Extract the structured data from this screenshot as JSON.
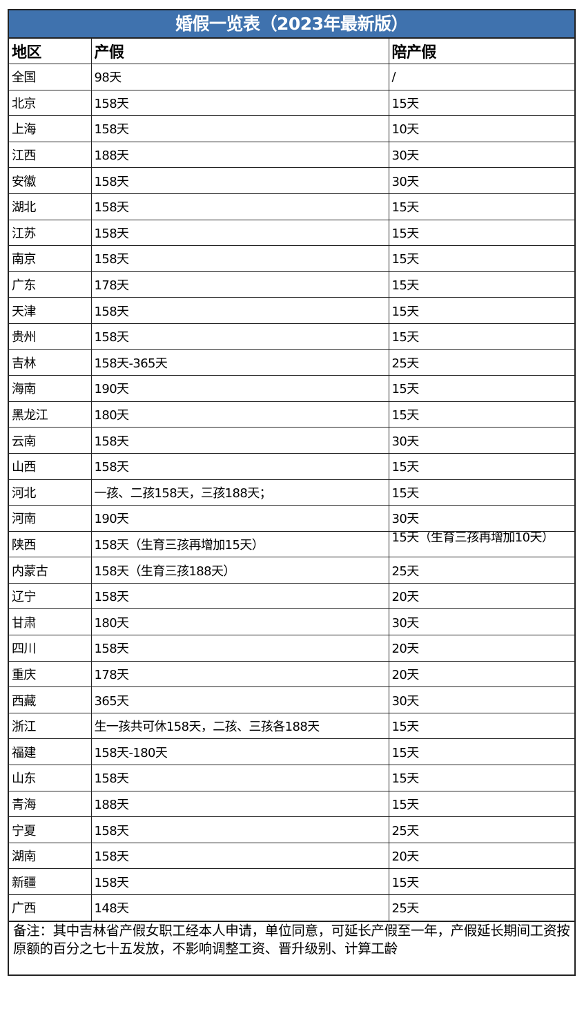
{
  "title": "婚假一览表（2023年最新版）",
  "headers": [
    "地区",
    "产假",
    "陪产假"
  ],
  "rows": [
    [
      "全国",
      "98天",
      "/"
    ],
    [
      "北京",
      "158天",
      "15天"
    ],
    [
      "上海",
      "158天",
      "10天"
    ],
    [
      "江西",
      "188天",
      "30天"
    ],
    [
      "安徽",
      "158天",
      "30天"
    ],
    [
      "湖北",
      "158天",
      "15天"
    ],
    [
      "江苏",
      "158天",
      "15天"
    ],
    [
      "南京",
      "158天",
      "15天"
    ],
    [
      "广东",
      "178天",
      "15天"
    ],
    [
      "天津",
      "158天",
      "15天"
    ],
    [
      "贵州",
      "158天",
      "15天"
    ],
    [
      "吉林",
      "158天-365天",
      "25天"
    ],
    [
      "海南",
      "190天",
      "15天"
    ],
    [
      "黑龙江",
      "180天",
      "15天"
    ],
    [
      "云南",
      "158天",
      "30天"
    ],
    [
      "山西",
      "158天",
      "15天"
    ],
    [
      "河北",
      "一孩、二孩158天，三孩188天；",
      "15天"
    ],
    [
      "河南",
      "190天",
      "30天"
    ],
    [
      "陕西",
      "158天（生育三孩再增加15天）",
      "15天（生育三孩再增加10天）"
    ],
    [
      "内蒙古",
      "158天（生育三孩188天）",
      "25天"
    ],
    [
      "辽宁",
      "158天",
      "20天"
    ],
    [
      "甘肃",
      "180天",
      "30天"
    ],
    [
      "四川",
      "158天",
      "20天"
    ],
    [
      "重庆",
      "178天",
      "20天"
    ],
    [
      "西藏",
      "365天",
      "30天"
    ],
    [
      "浙江",
      "生一孩共可休158天，二孩、三孩各188天",
      "15天"
    ],
    [
      "福建",
      "158天-180天",
      "15天"
    ],
    [
      "山东",
      "158天",
      "15天"
    ],
    [
      "青海",
      "188天",
      "15天"
    ],
    [
      "宁夏",
      "158天",
      "25天"
    ],
    [
      "湖南",
      "158天",
      "20天"
    ],
    [
      "新疆",
      "158天",
      "15天"
    ],
    [
      "广西",
      "148天",
      "25天"
    ]
  ],
  "note": "备注：其中吉林省产假女职工经本人申请，单位同意，可延长产假至一年，产假延长期间工资按原额的百分之七十五发放，不影响调整工资、晋升级别、计算工龄",
  "colors": {
    "title_bg": "#3f72ae",
    "title_text": "#ffffff"
  }
}
